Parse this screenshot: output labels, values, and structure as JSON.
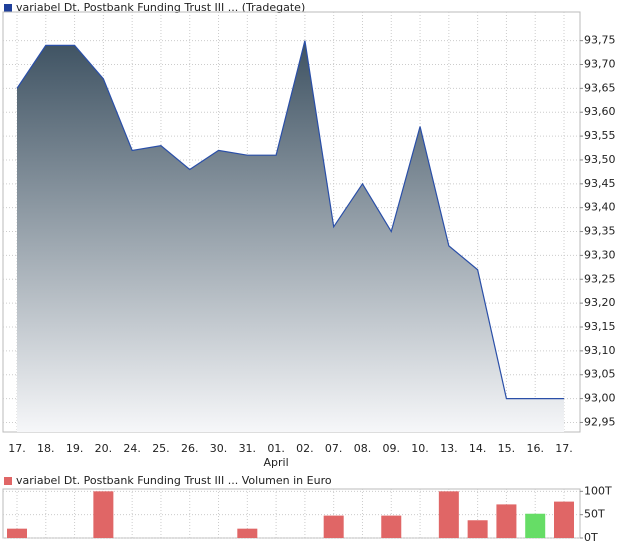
{
  "chart_data": [
    {
      "type": "area",
      "legend": "variabel Dt. Postbank Funding Trust III ... (Tradegate)",
      "legend_color": "#1f3f9a",
      "categories": [
        "17.",
        "18.",
        "19.",
        "20.",
        "24.",
        "25.",
        "26.",
        "30.",
        "31.",
        "01.",
        "02.",
        "07.",
        "08.",
        "09.",
        "10.",
        "13.",
        "14.",
        "15.",
        "16.",
        "17."
      ],
      "month_labels": [
        null,
        null,
        null,
        null,
        null,
        null,
        null,
        null,
        null,
        "April",
        null,
        null,
        null,
        null,
        null,
        null,
        null,
        null,
        null,
        null
      ],
      "values": [
        93.65,
        93.74,
        93.74,
        93.67,
        93.52,
        93.53,
        93.48,
        93.52,
        93.51,
        93.51,
        93.75,
        93.36,
        93.45,
        93.35,
        93.57,
        93.32,
        93.27,
        93.0,
        93.0,
        93.0
      ],
      "color": "#2a4fa8",
      "ylim": [
        92.93,
        93.81
      ],
      "yticks": [
        {
          "value": 92.95,
          "label": "92,95"
        },
        {
          "value": 93.0,
          "label": "93,00"
        },
        {
          "value": 93.05,
          "label": "93,05"
        },
        {
          "value": 93.1,
          "label": "93,10"
        },
        {
          "value": 93.15,
          "label": "93,15"
        },
        {
          "value": 93.2,
          "label": "93,20"
        },
        {
          "value": 93.25,
          "label": "93,25"
        },
        {
          "value": 93.3,
          "label": "93,30"
        },
        {
          "value": 93.35,
          "label": "93,35"
        },
        {
          "value": 93.4,
          "label": "93,40"
        },
        {
          "value": 93.45,
          "label": "93,45"
        },
        {
          "value": 93.5,
          "label": "93,50"
        },
        {
          "value": 93.55,
          "label": "93,55"
        },
        {
          "value": 93.6,
          "label": "93,60"
        },
        {
          "value": 93.65,
          "label": "93,65"
        },
        {
          "value": 93.7,
          "label": "93,70"
        },
        {
          "value": 93.75,
          "label": "93,75"
        }
      ],
      "grid": true
    },
    {
      "type": "bar",
      "legend": "variabel Dt. Postbank Funding Trust III ... Volumen in Euro",
      "legend_color": "#e06666",
      "values": [
        20,
        0,
        0,
        100,
        0,
        0,
        0,
        0,
        20,
        0,
        0,
        48,
        0,
        48,
        0,
        100,
        38,
        72,
        52,
        78
      ],
      "colors": [
        "#e06666",
        "#e06666",
        "#e06666",
        "#e06666",
        "#e06666",
        "#e06666",
        "#e06666",
        "#e06666",
        "#e06666",
        "#e06666",
        "#e06666",
        "#e06666",
        "#e06666",
        "#e06666",
        "#e06666",
        "#e06666",
        "#e06666",
        "#e06666",
        "#66dd66",
        "#e06666"
      ],
      "ylim": [
        0,
        105
      ],
      "yticks": [
        {
          "value": 0,
          "label": "0T"
        },
        {
          "value": 50,
          "label": "50T"
        },
        {
          "value": 100,
          "label": "100T"
        }
      ],
      "grid": true
    }
  ]
}
